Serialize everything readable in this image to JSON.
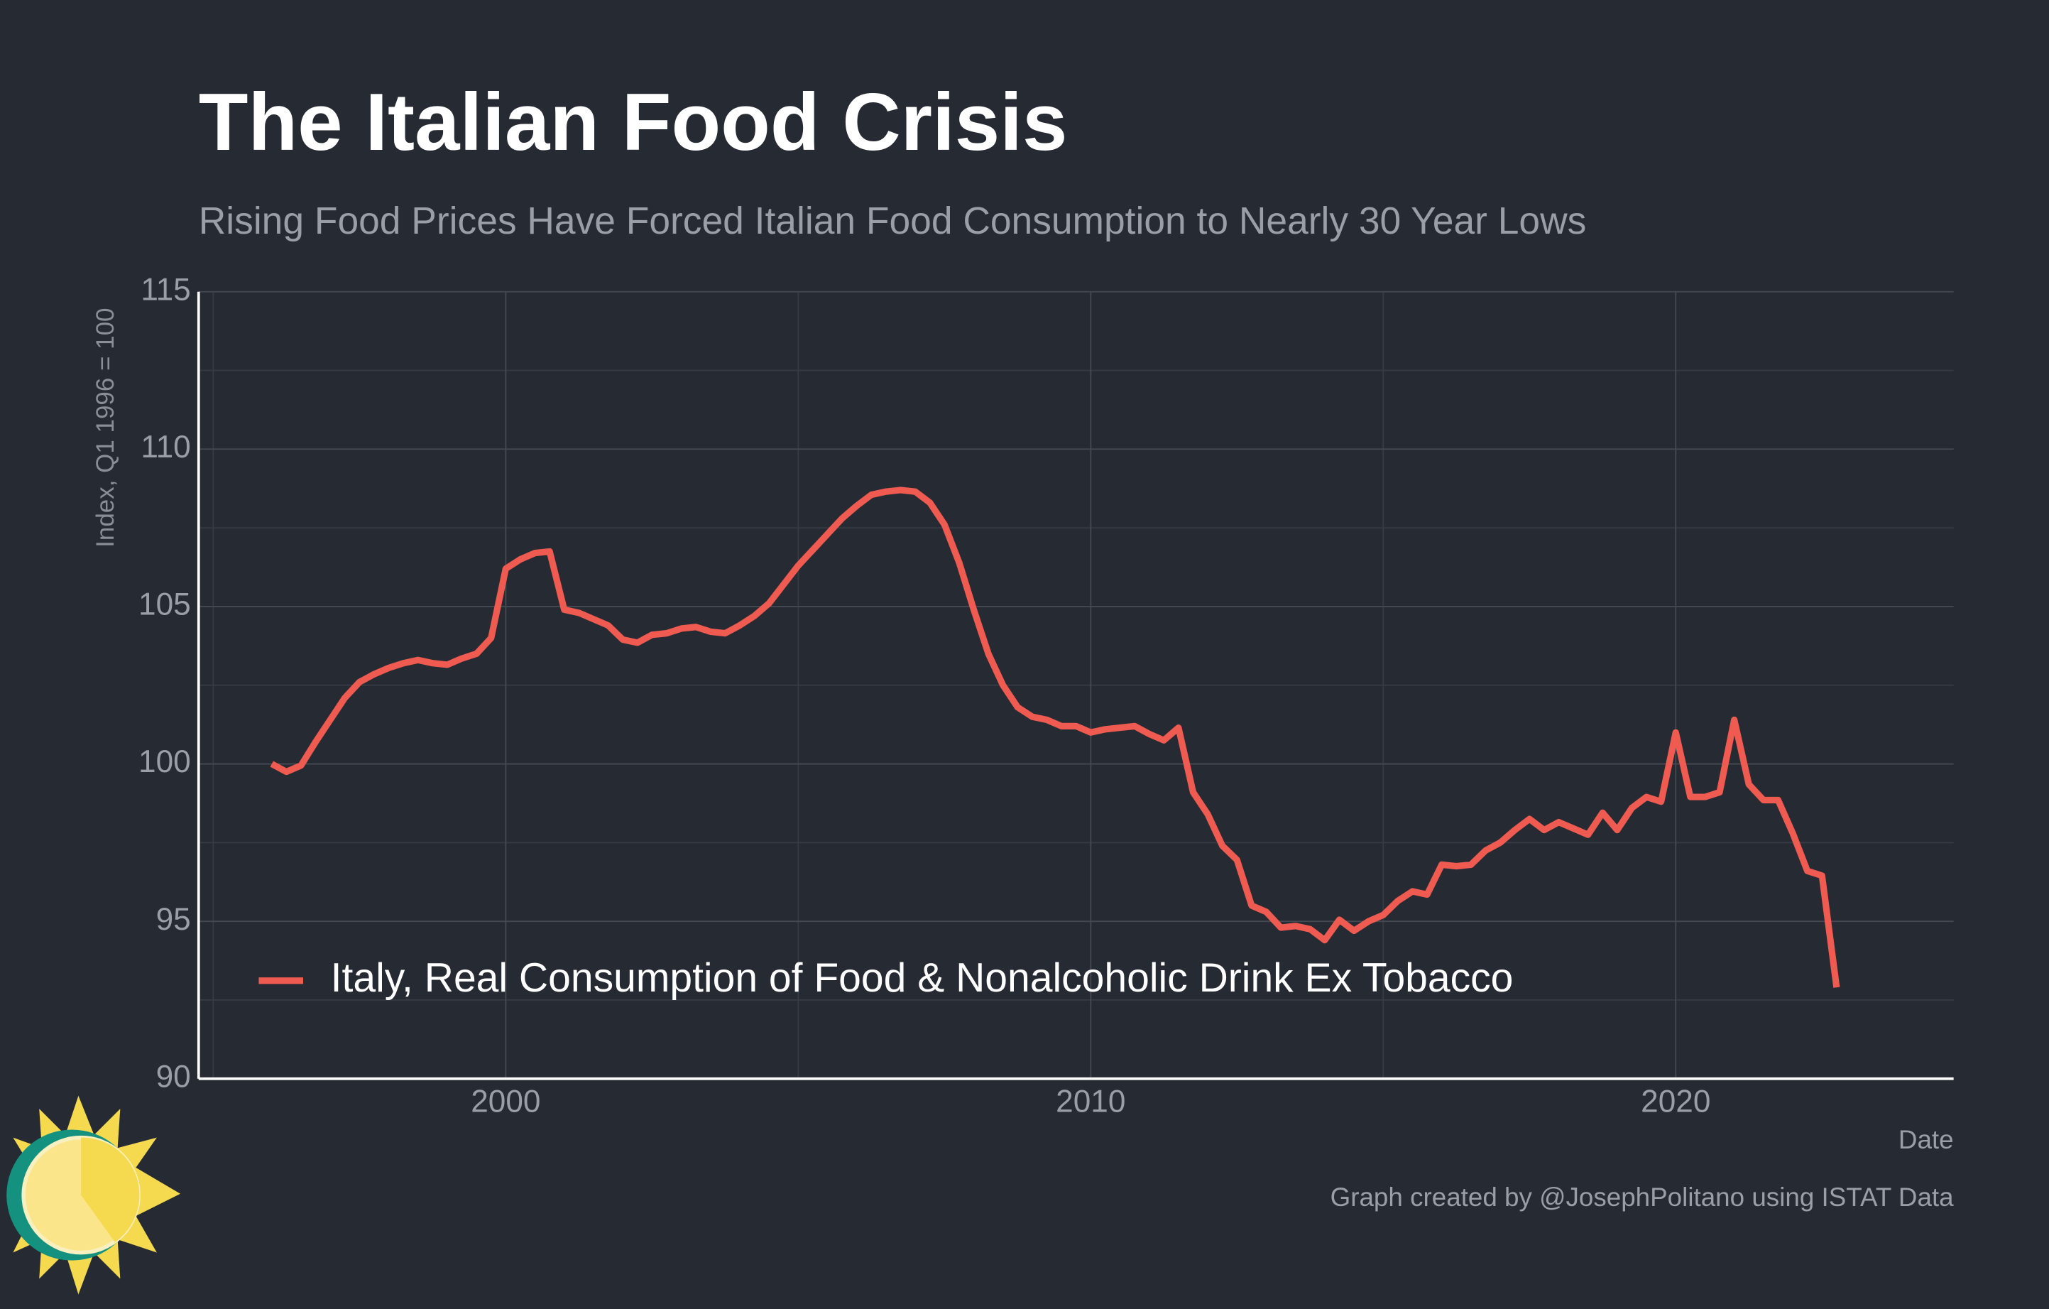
{
  "chart_data": {
    "type": "line",
    "title": "The Italian Food Crisis",
    "subtitle": "Rising Food Prices Have Forced Italian Food Consumption to Nearly 30 Year Lows",
    "y_label": "Index, Q1 1996 = 100",
    "x_label": "Date",
    "caption": "Graph created by @JosephPolitano using ISTAT Data",
    "x": [
      1996,
      1996.25,
      1996.5,
      1996.75,
      1997,
      1997.25,
      1997.5,
      1997.75,
      1998,
      1998.25,
      1998.5,
      1998.75,
      1999,
      1999.25,
      1999.5,
      1999.75,
      2000,
      2000.25,
      2000.5,
      2000.75,
      2001,
      2001.25,
      2001.5,
      2001.75,
      2002,
      2002.25,
      2002.5,
      2002.75,
      2003,
      2003.25,
      2003.5,
      2003.75,
      2004,
      2004.25,
      2004.5,
      2004.75,
      2005,
      2005.25,
      2005.5,
      2005.75,
      2006,
      2006.25,
      2006.5,
      2006.75,
      2007,
      2007.25,
      2007.5,
      2007.75,
      2008,
      2008.25,
      2008.5,
      2008.75,
      2009,
      2009.25,
      2009.5,
      2009.75,
      2010,
      2010.25,
      2010.5,
      2010.75,
      2011,
      2011.25,
      2011.5,
      2011.75,
      2012,
      2012.25,
      2012.5,
      2012.75,
      2013,
      2013.25,
      2013.5,
      2013.75,
      2014,
      2014.25,
      2014.5,
      2014.75,
      2015,
      2015.25,
      2015.5,
      2015.75,
      2016,
      2016.25,
      2016.5,
      2016.75,
      2017,
      2017.25,
      2017.5,
      2017.75,
      2018,
      2018.25,
      2018.5,
      2018.75,
      2019,
      2019.25,
      2019.5,
      2019.75,
      2020,
      2020.25,
      2020.5,
      2020.75,
      2021,
      2021.25,
      2021.5,
      2021.75,
      2022,
      2022.25,
      2022.5,
      2022.75
    ],
    "series": [
      {
        "name": "Italy, Real Consumption of Food & Nonalcoholic Drink Ex Tobacco",
        "color": "#ef5b50",
        "values": [
          100.0,
          99.75,
          99.95,
          100.7,
          101.4,
          102.1,
          102.6,
          102.85,
          103.05,
          103.2,
          103.3,
          103.2,
          103.15,
          103.35,
          103.5,
          104.0,
          106.2,
          106.5,
          106.7,
          106.75,
          104.9,
          104.8,
          104.6,
          104.4,
          103.95,
          103.85,
          104.1,
          104.15,
          104.3,
          104.35,
          104.2,
          104.15,
          104.4,
          104.7,
          105.1,
          105.7,
          106.3,
          106.8,
          107.3,
          107.8,
          108.2,
          108.55,
          108.65,
          108.7,
          108.65,
          108.3,
          107.6,
          106.4,
          104.9,
          103.5,
          102.5,
          101.8,
          101.5,
          101.4,
          101.2,
          101.2,
          101.0,
          101.1,
          101.15,
          101.2,
          100.95,
          100.75,
          101.15,
          99.1,
          98.4,
          97.4,
          96.95,
          95.5,
          95.3,
          94.8,
          94.85,
          94.75,
          94.4,
          95.05,
          94.7,
          95.0,
          95.2,
          95.65,
          95.95,
          95.85,
          96.8,
          96.75,
          96.8,
          97.25,
          97.5,
          97.9,
          98.25,
          97.9,
          98.15,
          97.95,
          97.75,
          98.45,
          97.9,
          98.6,
          98.95,
          98.8,
          101.0,
          98.95,
          98.95,
          99.1,
          101.4,
          99.35,
          98.85,
          98.85,
          97.8,
          96.6,
          96.45,
          92.9
        ]
      }
    ],
    "xlim": [
      1994.75,
      2024.75
    ],
    "xticks": [
      2000,
      2010,
      2020
    ],
    "xminorticks": [
      1995,
      2005,
      2015
    ],
    "ylim": [
      90,
      115
    ],
    "yticks": [
      90,
      95,
      100,
      105,
      110,
      115
    ],
    "yminorticks": [
      92.5,
      97.5,
      102.5,
      107.5,
      112.5
    ],
    "grid": true,
    "legend": "bottom-left"
  }
}
